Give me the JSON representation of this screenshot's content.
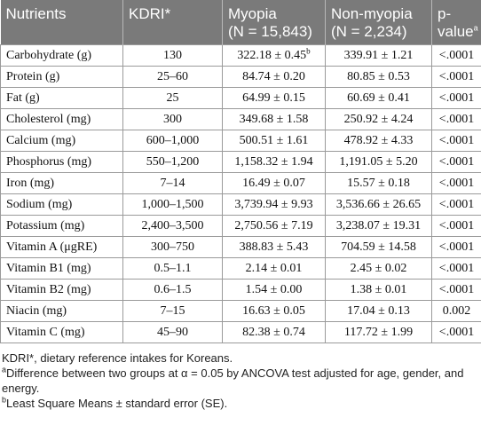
{
  "table": {
    "headers": {
      "nutrients": "Nutrients",
      "kdri": "KDRI*",
      "myopia": "Myopia",
      "myopia_n": "(N = 15,843)",
      "nonmyopia": "Non-myopia",
      "nonmyopia_n": "(N = 2,234)",
      "pvalue": "p-value",
      "pvalue_sup": "a"
    },
    "rows": [
      {
        "nutrient": "Carbohydrate (g)",
        "kdri": "130",
        "myopia": "322.18 ± 0.45",
        "myopia_sup": "b",
        "nonmyopia": "339.91 ± 1.21",
        "p": "<.0001"
      },
      {
        "nutrient": "Protein (g)",
        "kdri": "25–60",
        "myopia": "84.74 ± 0.20",
        "nonmyopia": "80.85 ± 0.53",
        "p": "<.0001"
      },
      {
        "nutrient": "Fat (g)",
        "kdri": "25",
        "myopia": "64.99 ± 0.15",
        "nonmyopia": "60.69 ± 0.41",
        "p": "<.0001"
      },
      {
        "nutrient": "Cholesterol (mg)",
        "kdri": "300",
        "myopia": "349.68 ± 1.58",
        "nonmyopia": "250.92 ± 4.24",
        "p": "<.0001"
      },
      {
        "nutrient": "Calcium (mg)",
        "kdri": "600–1,000",
        "myopia": "500.51 ± 1.61",
        "nonmyopia": "478.92 ± 4.33",
        "p": "<.0001"
      },
      {
        "nutrient": "Phosphorus (mg)",
        "kdri": "550–1,200",
        "myopia": "1,158.32 ± 1.94",
        "nonmyopia": "1,191.05 ± 5.20",
        "p": "<.0001"
      },
      {
        "nutrient": "Iron (mg)",
        "kdri": "7–14",
        "myopia": "16.49 ± 0.07",
        "nonmyopia": "15.57 ± 0.18",
        "p": "<.0001"
      },
      {
        "nutrient": "Sodium (mg)",
        "kdri": "1,000–1,500",
        "myopia": "3,739.94 ± 9.93",
        "nonmyopia": "3,536.66 ± 26.65",
        "p": "<.0001"
      },
      {
        "nutrient": "Potassium (mg)",
        "kdri": "2,400–3,500",
        "myopia": "2,750.56 ± 7.19",
        "nonmyopia": "3,238.07 ± 19.31",
        "p": "<.0001"
      },
      {
        "nutrient": "Vitamin A (μgRE)",
        "kdri": "300–750",
        "myopia": "388.83 ± 5.43",
        "nonmyopia": "704.59 ± 14.58",
        "p": "<.0001"
      },
      {
        "nutrient": "Vitamin B1 (mg)",
        "kdri": "0.5–1.1",
        "myopia": "2.14 ± 0.01",
        "nonmyopia": "2.45 ± 0.02",
        "p": "<.0001"
      },
      {
        "nutrient": "Vitamin B2 (mg)",
        "kdri": "0.6–1.5",
        "myopia": "1.54 ± 0.00",
        "nonmyopia": "1.38 ± 0.01",
        "p": "<.0001"
      },
      {
        "nutrient": "Niacin (mg)",
        "kdri": "7–15",
        "myopia": "16.63 ± 0.05",
        "nonmyopia": "17.04 ± 0.13",
        "p": "0.002"
      },
      {
        "nutrient": "Vitamin C (mg)",
        "kdri": "45–90",
        "myopia": "82.38 ± 0.74",
        "nonmyopia": "117.72 ± 1.99",
        "p": "<.0001"
      }
    ]
  },
  "notes": {
    "kdri": "KDRI*, dietary reference intakes for Koreans.",
    "a_sup": "a",
    "a": "Difference between two groups at α = 0.05 by ANCOVA test adjusted for age, gender, and energy.",
    "b_sup": "b",
    "b": "Least Square Means ± standard error (SE)."
  },
  "colors": {
    "header_bg": "#7a7a7a",
    "header_text": "#ffffff",
    "border": "#9a9a9a"
  }
}
